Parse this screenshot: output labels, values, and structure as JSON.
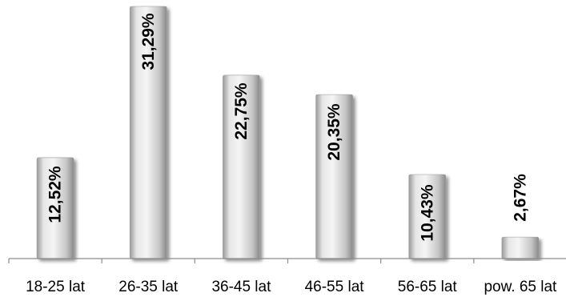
{
  "chart_data": {
    "type": "bar",
    "categories": [
      "18-25 lat",
      "26-35 lat",
      "36-45 lat",
      "46-55 lat",
      "56-65 lat",
      "pow. 65 lat"
    ],
    "values": [
      12.52,
      31.29,
      22.75,
      20.35,
      10.43,
      2.67
    ],
    "data_labels": [
      "12,52%",
      "31,29%",
      "22,75%",
      "20,35%",
      "10,43%",
      "2,67%"
    ],
    "title": "",
    "xlabel": "",
    "ylabel": "",
    "ylim": [
      0,
      32
    ],
    "grid": false,
    "legend": "none",
    "colors": {
      "bar_light": "#f4f4f4",
      "bar_mid": "#c9c9c9",
      "bar_dark": "#8e8e8e",
      "axis": "#8c8c8c"
    }
  }
}
